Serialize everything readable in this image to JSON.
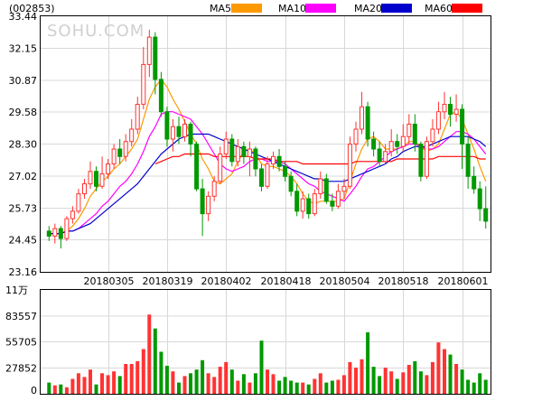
{
  "header": {
    "stock_code": "(002853)",
    "legend": [
      {
        "label": "MA5",
        "color": "#ff9900"
      },
      {
        "label": "MA10",
        "color": "#ff00ff"
      },
      {
        "label": "MA20",
        "color": "#0000cc"
      },
      {
        "label": "MA60",
        "color": "#ff0000"
      }
    ]
  },
  "watermark": "SOHU.COM",
  "colors": {
    "up": "#ff3333",
    "down": "#009900"
  },
  "chart_data": [
    {
      "type": "candlestick",
      "title": "",
      "yticks": [
        "33.44",
        "32.15",
        "30.87",
        "29.58",
        "28.30",
        "27.02",
        "25.73",
        "24.45",
        "23.16"
      ],
      "ylim": [
        23.16,
        33.44
      ],
      "grid": true,
      "xticks": [
        {
          "label": "20180305",
          "index": 10
        },
        {
          "label": "20180319",
          "index": 20
        },
        {
          "label": "20180402",
          "index": 30
        },
        {
          "label": "20180418",
          "index": 40
        },
        {
          "label": "20180504",
          "index": 50
        },
        {
          "label": "20180518",
          "index": 60
        },
        {
          "label": "20180601",
          "index": 70
        }
      ],
      "candles": [
        [
          24.8,
          24.6,
          25.0,
          24.4
        ],
        [
          24.6,
          24.9,
          25.1,
          24.3
        ],
        [
          24.9,
          24.5,
          25.0,
          24.1
        ],
        [
          24.5,
          25.3,
          25.4,
          24.4
        ],
        [
          25.3,
          25.6,
          25.8,
          25.1
        ],
        [
          25.6,
          26.3,
          26.5,
          25.5
        ],
        [
          26.3,
          26.7,
          26.9,
          26.1
        ],
        [
          26.7,
          27.2,
          27.6,
          26.5
        ],
        [
          27.2,
          26.6,
          27.4,
          26.4
        ],
        [
          26.6,
          27.1,
          27.8,
          26.5
        ],
        [
          27.1,
          27.5,
          27.7,
          26.9
        ],
        [
          27.5,
          28.1,
          28.3,
          27.3
        ],
        [
          28.1,
          27.8,
          28.5,
          27.5
        ],
        [
          27.8,
          28.4,
          28.7,
          27.6
        ],
        [
          28.4,
          28.9,
          29.3,
          28.2
        ],
        [
          28.9,
          29.9,
          30.2,
          28.7
        ],
        [
          29.9,
          31.5,
          32.2,
          29.7
        ],
        [
          31.5,
          32.6,
          32.9,
          31.0
        ],
        [
          32.6,
          30.9,
          32.8,
          30.3
        ],
        [
          30.9,
          29.6,
          31.2,
          29.4
        ],
        [
          29.6,
          28.5,
          29.8,
          28.2
        ],
        [
          28.5,
          29.0,
          29.3,
          28.0
        ],
        [
          29.0,
          28.6,
          29.4,
          28.3
        ],
        [
          28.6,
          29.1,
          29.3,
          28.4
        ],
        [
          29.1,
          28.3,
          29.2,
          27.8
        ],
        [
          28.3,
          26.5,
          28.4,
          26.4
        ],
        [
          26.5,
          25.5,
          26.9,
          24.6
        ],
        [
          25.5,
          26.2,
          26.4,
          25.2
        ],
        [
          26.2,
          26.8,
          27.0,
          26.0
        ],
        [
          26.8,
          27.9,
          28.2,
          26.7
        ],
        [
          27.9,
          28.5,
          28.8,
          27.7
        ],
        [
          28.5,
          27.6,
          28.7,
          27.4
        ],
        [
          27.6,
          28.2,
          28.5,
          27.4
        ],
        [
          28.2,
          27.8,
          28.4,
          27.5
        ],
        [
          27.8,
          28.1,
          28.4,
          27.0
        ],
        [
          28.1,
          27.3,
          28.2,
          27.0
        ],
        [
          27.3,
          26.6,
          27.5,
          26.4
        ],
        [
          26.6,
          27.5,
          27.8,
          26.5
        ],
        [
          27.5,
          27.8,
          28.0,
          27.3
        ],
        [
          27.8,
          27.4,
          28.1,
          27.2
        ],
        [
          27.4,
          27.0,
          27.6,
          26.8
        ],
        [
          27.0,
          26.4,
          27.2,
          26.2
        ],
        [
          26.4,
          25.6,
          26.7,
          25.4
        ],
        [
          25.6,
          26.1,
          26.4,
          25.3
        ],
        [
          26.1,
          25.5,
          26.3,
          25.3
        ],
        [
          25.5,
          26.3,
          26.5,
          25.4
        ],
        [
          26.3,
          26.9,
          27.2,
          26.1
        ],
        [
          26.9,
          26.0,
          27.1,
          25.9
        ],
        [
          26.0,
          25.8,
          26.3,
          25.6
        ],
        [
          25.8,
          26.4,
          26.7,
          25.7
        ],
        [
          26.4,
          26.6,
          26.9,
          26.1
        ],
        [
          26.6,
          28.3,
          28.6,
          26.5
        ],
        [
          28.3,
          28.9,
          29.2,
          28.0
        ],
        [
          28.9,
          29.8,
          30.4,
          28.7
        ],
        [
          29.8,
          28.5,
          30.0,
          28.2
        ],
        [
          28.5,
          28.1,
          28.8,
          27.8
        ],
        [
          28.1,
          27.6,
          28.4,
          27.4
        ],
        [
          27.6,
          28.0,
          28.3,
          27.5
        ],
        [
          28.0,
          28.4,
          28.9,
          27.8
        ],
        [
          28.4,
          28.2,
          28.7,
          27.9
        ],
        [
          28.2,
          28.6,
          29.1,
          28.0
        ],
        [
          28.6,
          29.1,
          29.5,
          28.3
        ],
        [
          29.1,
          28.3,
          29.5,
          28.0
        ],
        [
          28.3,
          27.0,
          28.4,
          26.8
        ],
        [
          27.0,
          28.4,
          28.6,
          26.9
        ],
        [
          28.4,
          28.9,
          29.3,
          28.2
        ],
        [
          28.9,
          29.6,
          30.0,
          28.7
        ],
        [
          29.6,
          29.9,
          30.4,
          29.3
        ],
        [
          29.9,
          29.5,
          30.2,
          29.0
        ],
        [
          29.5,
          29.7,
          30.3,
          29.2
        ],
        [
          29.7,
          28.3,
          29.9,
          27.3
        ],
        [
          28.3,
          27.0,
          28.6,
          26.5
        ],
        [
          27.0,
          26.5,
          27.4,
          26.3
        ],
        [
          26.5,
          25.7,
          26.8,
          25.2
        ],
        [
          25.7,
          25.2,
          26.6,
          24.9
        ]
      ],
      "series": [
        {
          "name": "MA5",
          "values": [
            24.7,
            24.7,
            24.7,
            24.8,
            25.0,
            25.3,
            25.7,
            26.2,
            26.5,
            26.8,
            27.0,
            27.3,
            27.5,
            27.8,
            28.1,
            28.5,
            29.3,
            30.1,
            30.6,
            30.9,
            30.6,
            30.1,
            29.7,
            29.2,
            28.7,
            28.3,
            27.7,
            27.3,
            26.8,
            26.7,
            26.9,
            27.1,
            27.6,
            28.0,
            28.1,
            27.9,
            27.5,
            27.4,
            27.4,
            27.3,
            27.2,
            27.0,
            26.7,
            26.3,
            26.0,
            25.9,
            26.0,
            26.0,
            26.0,
            26.0,
            26.1,
            26.8,
            27.5,
            28.1,
            28.5,
            28.6,
            28.4,
            28.1,
            28.1,
            28.1,
            28.2,
            28.4,
            28.4,
            28.2,
            28.0,
            28.1,
            28.3,
            28.9,
            29.5,
            29.6,
            29.3,
            28.7,
            28.1,
            27.4,
            26.8
          ]
        },
        {
          "name": "MA10",
          "values": [
            24.7,
            24.7,
            24.7,
            24.8,
            24.8,
            24.9,
            25.1,
            25.3,
            25.5,
            25.8,
            26.0,
            26.3,
            26.6,
            26.8,
            27.1,
            27.5,
            28.0,
            28.6,
            29.0,
            29.5,
            29.6,
            29.6,
            29.5,
            29.4,
            29.3,
            29.0,
            28.7,
            28.3,
            27.9,
            27.5,
            27.3,
            27.2,
            27.3,
            27.4,
            27.6,
            27.7,
            27.7,
            27.6,
            27.6,
            27.6,
            27.5,
            27.3,
            27.1,
            26.9,
            26.7,
            26.6,
            26.4,
            26.3,
            26.2,
            26.1,
            26.0,
            26.3,
            26.6,
            27.0,
            27.3,
            27.4,
            27.6,
            27.8,
            28.0,
            28.1,
            28.2,
            28.3,
            28.3,
            28.2,
            28.1,
            28.1,
            28.2,
            28.4,
            28.6,
            28.8,
            28.8,
            28.7,
            28.5,
            28.2,
            27.9
          ]
        },
        {
          "name": "MA20",
          "values": [
            24.7,
            24.7,
            24.7,
            24.8,
            24.8,
            24.9,
            25.0,
            25.1,
            25.3,
            25.5,
            25.7,
            25.9,
            26.1,
            26.3,
            26.5,
            26.7,
            27.0,
            27.3,
            27.6,
            27.9,
            28.1,
            28.3,
            28.5,
            28.6,
            28.7,
            28.7,
            28.7,
            28.7,
            28.6,
            28.5,
            28.4,
            28.3,
            28.2,
            28.1,
            28.0,
            27.9,
            27.8,
            27.7,
            27.6,
            27.5,
            27.4,
            27.3,
            27.2,
            27.1,
            27.0,
            26.9,
            26.9,
            26.8,
            26.8,
            26.8,
            26.8,
            26.9,
            27.0,
            27.1,
            27.2,
            27.3,
            27.4,
            27.5,
            27.7,
            27.8,
            28.0,
            28.1,
            28.2,
            28.2,
            28.2,
            28.3,
            28.4,
            28.5,
            28.6,
            28.6,
            28.6,
            28.6,
            28.5,
            28.4,
            28.2
          ]
        },
        {
          "name": "MA60",
          "values": [
            null,
            null,
            null,
            null,
            null,
            null,
            null,
            null,
            null,
            null,
            null,
            null,
            null,
            null,
            null,
            null,
            null,
            null,
            27.5,
            27.6,
            27.7,
            27.8,
            27.8,
            27.9,
            27.9,
            27.9,
            27.9,
            27.9,
            27.8,
            27.8,
            27.8,
            27.8,
            27.8,
            27.8,
            27.8,
            27.7,
            27.7,
            27.7,
            27.7,
            27.6,
            27.6,
            27.6,
            27.6,
            27.5,
            27.5,
            27.5,
            27.5,
            27.5,
            27.5,
            27.5,
            27.5,
            27.5,
            27.6,
            27.6,
            27.6,
            27.6,
            27.6,
            27.6,
            27.6,
            27.7,
            27.7,
            27.7,
            27.7,
            27.7,
            27.7,
            27.7,
            27.8,
            27.8,
            27.8,
            27.8,
            27.8,
            27.8,
            27.8,
            27.7,
            27.7
          ]
        }
      ]
    },
    {
      "type": "bar",
      "title": "",
      "unit_label": "11万",
      "yticks": [
        "83557",
        "55705",
        "27852",
        "0"
      ],
      "ylim": [
        0,
        111410
      ],
      "grid": true,
      "values": [
        12000,
        9000,
        10000,
        7000,
        16000,
        22000,
        18000,
        26000,
        10000,
        22000,
        20000,
        24000,
        19000,
        32000,
        32000,
        35000,
        48000,
        85000,
        70000,
        45000,
        30000,
        24000,
        12000,
        19000,
        22000,
        26000,
        36000,
        22000,
        18000,
        29000,
        34000,
        26000,
        14000,
        21000,
        12000,
        22000,
        57000,
        26000,
        21000,
        14000,
        18000,
        14000,
        12000,
        12000,
        10000,
        16000,
        22000,
        12000,
        14000,
        15000,
        20000,
        34000,
        28000,
        37000,
        66000,
        29000,
        19000,
        28000,
        24000,
        16000,
        23000,
        31000,
        35000,
        24000,
        20000,
        34000,
        55000,
        48000,
        42000,
        32000,
        26000,
        15000,
        12000,
        22000,
        15000
      ],
      "directions": [
        "down",
        "up",
        "down",
        "up",
        "up",
        "up",
        "up",
        "up",
        "down",
        "up",
        "up",
        "up",
        "down",
        "up",
        "up",
        "up",
        "up",
        "up",
        "down",
        "down",
        "down",
        "up",
        "down",
        "up",
        "down",
        "down",
        "down",
        "up",
        "up",
        "up",
        "up",
        "down",
        "up",
        "down",
        "up",
        "down",
        "down",
        "up",
        "up",
        "down",
        "down",
        "down",
        "down",
        "up",
        "down",
        "up",
        "up",
        "down",
        "down",
        "up",
        "up",
        "up",
        "up",
        "up",
        "down",
        "down",
        "down",
        "up",
        "up",
        "down",
        "up",
        "up",
        "down",
        "down",
        "up",
        "up",
        "up",
        "up",
        "down",
        "up",
        "down",
        "down",
        "down",
        "down",
        "down"
      ]
    }
  ]
}
